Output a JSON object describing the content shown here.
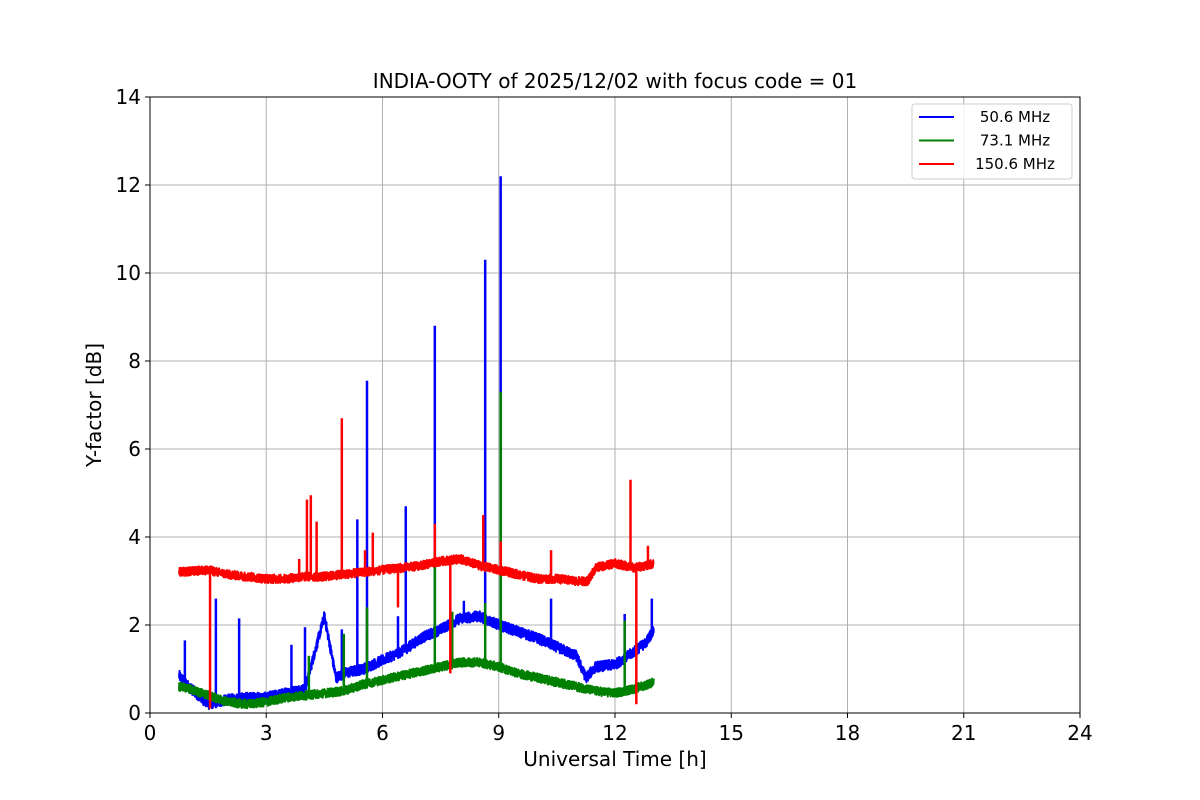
{
  "chart_data": {
    "type": "line",
    "title": "INDIA-OOTY of 2025/12/02 with focus code = 01",
    "xlabel": "Universal Time [h]",
    "ylabel": "Y-factor [dB]",
    "xlim": [
      0,
      24
    ],
    "ylim": [
      0,
      14
    ],
    "xticks": [
      0,
      3,
      6,
      9,
      12,
      15,
      18,
      21,
      24
    ],
    "yticks": [
      0,
      2,
      4,
      6,
      8,
      10,
      12,
      14
    ],
    "grid": true,
    "legend_position": "top-right",
    "series": [
      {
        "name": "50.6 MHz",
        "color": "#0000ff",
        "noise": 0.12,
        "baseline": [
          [
            0.75,
            0.85
          ],
          [
            1.0,
            0.6
          ],
          [
            1.5,
            0.2
          ],
          [
            2.0,
            0.3
          ],
          [
            2.5,
            0.35
          ],
          [
            3.0,
            0.35
          ],
          [
            3.5,
            0.45
          ],
          [
            4.0,
            0.55
          ],
          [
            4.5,
            2.2
          ],
          [
            4.8,
            0.8
          ],
          [
            5.0,
            0.9
          ],
          [
            5.5,
            1.0
          ],
          [
            6.0,
            1.2
          ],
          [
            6.5,
            1.4
          ],
          [
            7.0,
            1.7
          ],
          [
            7.5,
            1.9
          ],
          [
            8.0,
            2.15
          ],
          [
            8.5,
            2.2
          ],
          [
            9.0,
            2.0
          ],
          [
            9.5,
            1.85
          ],
          [
            10.0,
            1.7
          ],
          [
            10.5,
            1.5
          ],
          [
            11.0,
            1.3
          ],
          [
            11.25,
            0.8
          ],
          [
            11.5,
            1.05
          ],
          [
            12.0,
            1.1
          ],
          [
            12.5,
            1.4
          ],
          [
            12.8,
            1.6
          ],
          [
            13.0,
            1.9
          ]
        ],
        "spikes": [
          [
            0.9,
            1.65
          ],
          [
            1.7,
            2.6
          ],
          [
            2.3,
            2.15
          ],
          [
            3.65,
            1.55
          ],
          [
            4.0,
            1.95
          ],
          [
            4.3,
            1.6
          ],
          [
            4.95,
            1.9
          ],
          [
            5.35,
            4.4
          ],
          [
            5.6,
            7.55
          ],
          [
            6.4,
            2.2
          ],
          [
            6.6,
            4.7
          ],
          [
            7.35,
            8.8
          ],
          [
            8.1,
            2.55
          ],
          [
            8.65,
            10.3
          ],
          [
            9.05,
            12.2
          ],
          [
            10.35,
            2.6
          ],
          [
            12.25,
            2.25
          ],
          [
            12.95,
            2.6
          ]
        ]
      },
      {
        "name": "73.1 MHz",
        "color": "#008000",
        "noise": 0.1,
        "baseline": [
          [
            0.75,
            0.6
          ],
          [
            1.0,
            0.55
          ],
          [
            1.5,
            0.4
          ],
          [
            2.0,
            0.25
          ],
          [
            2.5,
            0.2
          ],
          [
            3.0,
            0.25
          ],
          [
            3.5,
            0.35
          ],
          [
            4.0,
            0.4
          ],
          [
            4.5,
            0.45
          ],
          [
            5.0,
            0.5
          ],
          [
            5.5,
            0.65
          ],
          [
            6.0,
            0.75
          ],
          [
            6.5,
            0.85
          ],
          [
            7.0,
            0.95
          ],
          [
            7.5,
            1.05
          ],
          [
            8.0,
            1.15
          ],
          [
            8.5,
            1.15
          ],
          [
            9.0,
            1.05
          ],
          [
            9.5,
            0.9
          ],
          [
            10.0,
            0.8
          ],
          [
            10.5,
            0.7
          ],
          [
            11.0,
            0.6
          ],
          [
            11.5,
            0.5
          ],
          [
            12.0,
            0.45
          ],
          [
            12.5,
            0.55
          ],
          [
            13.0,
            0.7
          ]
        ],
        "spikes": [
          [
            4.1,
            1.3
          ],
          [
            5.0,
            1.8
          ],
          [
            5.6,
            2.4
          ],
          [
            7.35,
            3.4
          ],
          [
            7.8,
            2.3
          ],
          [
            8.65,
            2.5
          ],
          [
            9.05,
            7.3
          ],
          [
            12.25,
            2.1
          ]
        ]
      },
      {
        "name": "150.6 MHz",
        "color": "#ff0000",
        "noise": 0.1,
        "baseline": [
          [
            0.75,
            3.2
          ],
          [
            1.5,
            3.25
          ],
          [
            2.0,
            3.15
          ],
          [
            2.5,
            3.1
          ],
          [
            3.0,
            3.05
          ],
          [
            3.5,
            3.05
          ],
          [
            4.0,
            3.1
          ],
          [
            4.5,
            3.1
          ],
          [
            5.0,
            3.15
          ],
          [
            5.5,
            3.2
          ],
          [
            6.0,
            3.25
          ],
          [
            6.5,
            3.3
          ],
          [
            7.0,
            3.35
          ],
          [
            7.5,
            3.45
          ],
          [
            8.0,
            3.5
          ],
          [
            8.5,
            3.35
          ],
          [
            9.0,
            3.25
          ],
          [
            9.5,
            3.15
          ],
          [
            10.0,
            3.05
          ],
          [
            10.5,
            3.05
          ],
          [
            11.0,
            3.0
          ],
          [
            11.3,
            3.0
          ],
          [
            11.5,
            3.3
          ],
          [
            12.0,
            3.4
          ],
          [
            12.5,
            3.3
          ],
          [
            13.0,
            3.4
          ]
        ],
        "spikes": [
          [
            1.55,
            0.1
          ],
          [
            3.85,
            3.5
          ],
          [
            4.05,
            4.85
          ],
          [
            4.15,
            4.95
          ],
          [
            4.3,
            4.35
          ],
          [
            4.95,
            6.7
          ],
          [
            5.55,
            3.7
          ],
          [
            5.75,
            4.1
          ],
          [
            6.4,
            2.4
          ],
          [
            7.35,
            4.3
          ],
          [
            7.75,
            0.9
          ],
          [
            8.6,
            4.5
          ],
          [
            9.05,
            3.9
          ],
          [
            10.35,
            3.7
          ],
          [
            12.4,
            5.3
          ],
          [
            12.55,
            0.2
          ],
          [
            12.85,
            3.8
          ]
        ]
      }
    ]
  }
}
